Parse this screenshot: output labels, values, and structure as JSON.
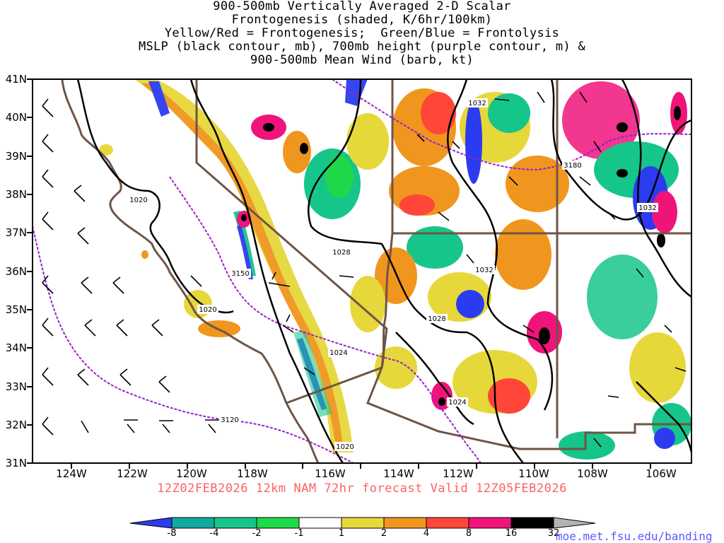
{
  "title": {
    "line1": "900-500mb Vertically Averaged 2-D Scalar",
    "line2": "Frontogenesis (shaded, K/6hr/100km)",
    "line3": "Yellow/Red = Frontogenesis;  Green/Blue = Frontolysis",
    "line4": "MSLP (black contour, mb), 700mb height (purple contour, m) &",
    "line5": "900-500mb Mean Wind (barb, kt)"
  },
  "axes": {
    "lat_labels": [
      "41N",
      "40N",
      "39N",
      "38N",
      "37N",
      "36N",
      "35N",
      "34N",
      "33N",
      "32N",
      "31N"
    ],
    "lon_labels": [
      "124W",
      "122W",
      "120W",
      "118W",
      "116W",
      "114W",
      "112W",
      "110W",
      "108W",
      "106W"
    ]
  },
  "valid_time": "12Z02FEB2026 12km NAM 72hr forecast Valid 12Z05FEB2026",
  "colorbar": {
    "labels": [
      "-8",
      "-4",
      "-2",
      "-1",
      "1",
      "2",
      "4",
      "8",
      "16",
      "32"
    ],
    "colors": [
      "#2b3cf0",
      "#12a9a0",
      "#16c58a",
      "#1ed84a",
      "#1ee01e",
      "#ffffff",
      "#e6d83a",
      "#f0961e",
      "#ff4638",
      "#f0147a",
      "#000000",
      "#b4b4b4"
    ]
  },
  "credit": "moe.met.fsu.edu/banding",
  "contour_labels": {
    "mslp": [
      "1032",
      "1020",
      "1028",
      "1032",
      "1020",
      "1028",
      "1024",
      "1024",
      "1032",
      "1020"
    ],
    "height": [
      "3180",
      "3150",
      "3120"
    ]
  },
  "map_colors": {
    "mslp": "#000000",
    "height": "#9b1fd0",
    "borders": "#6e5546"
  }
}
